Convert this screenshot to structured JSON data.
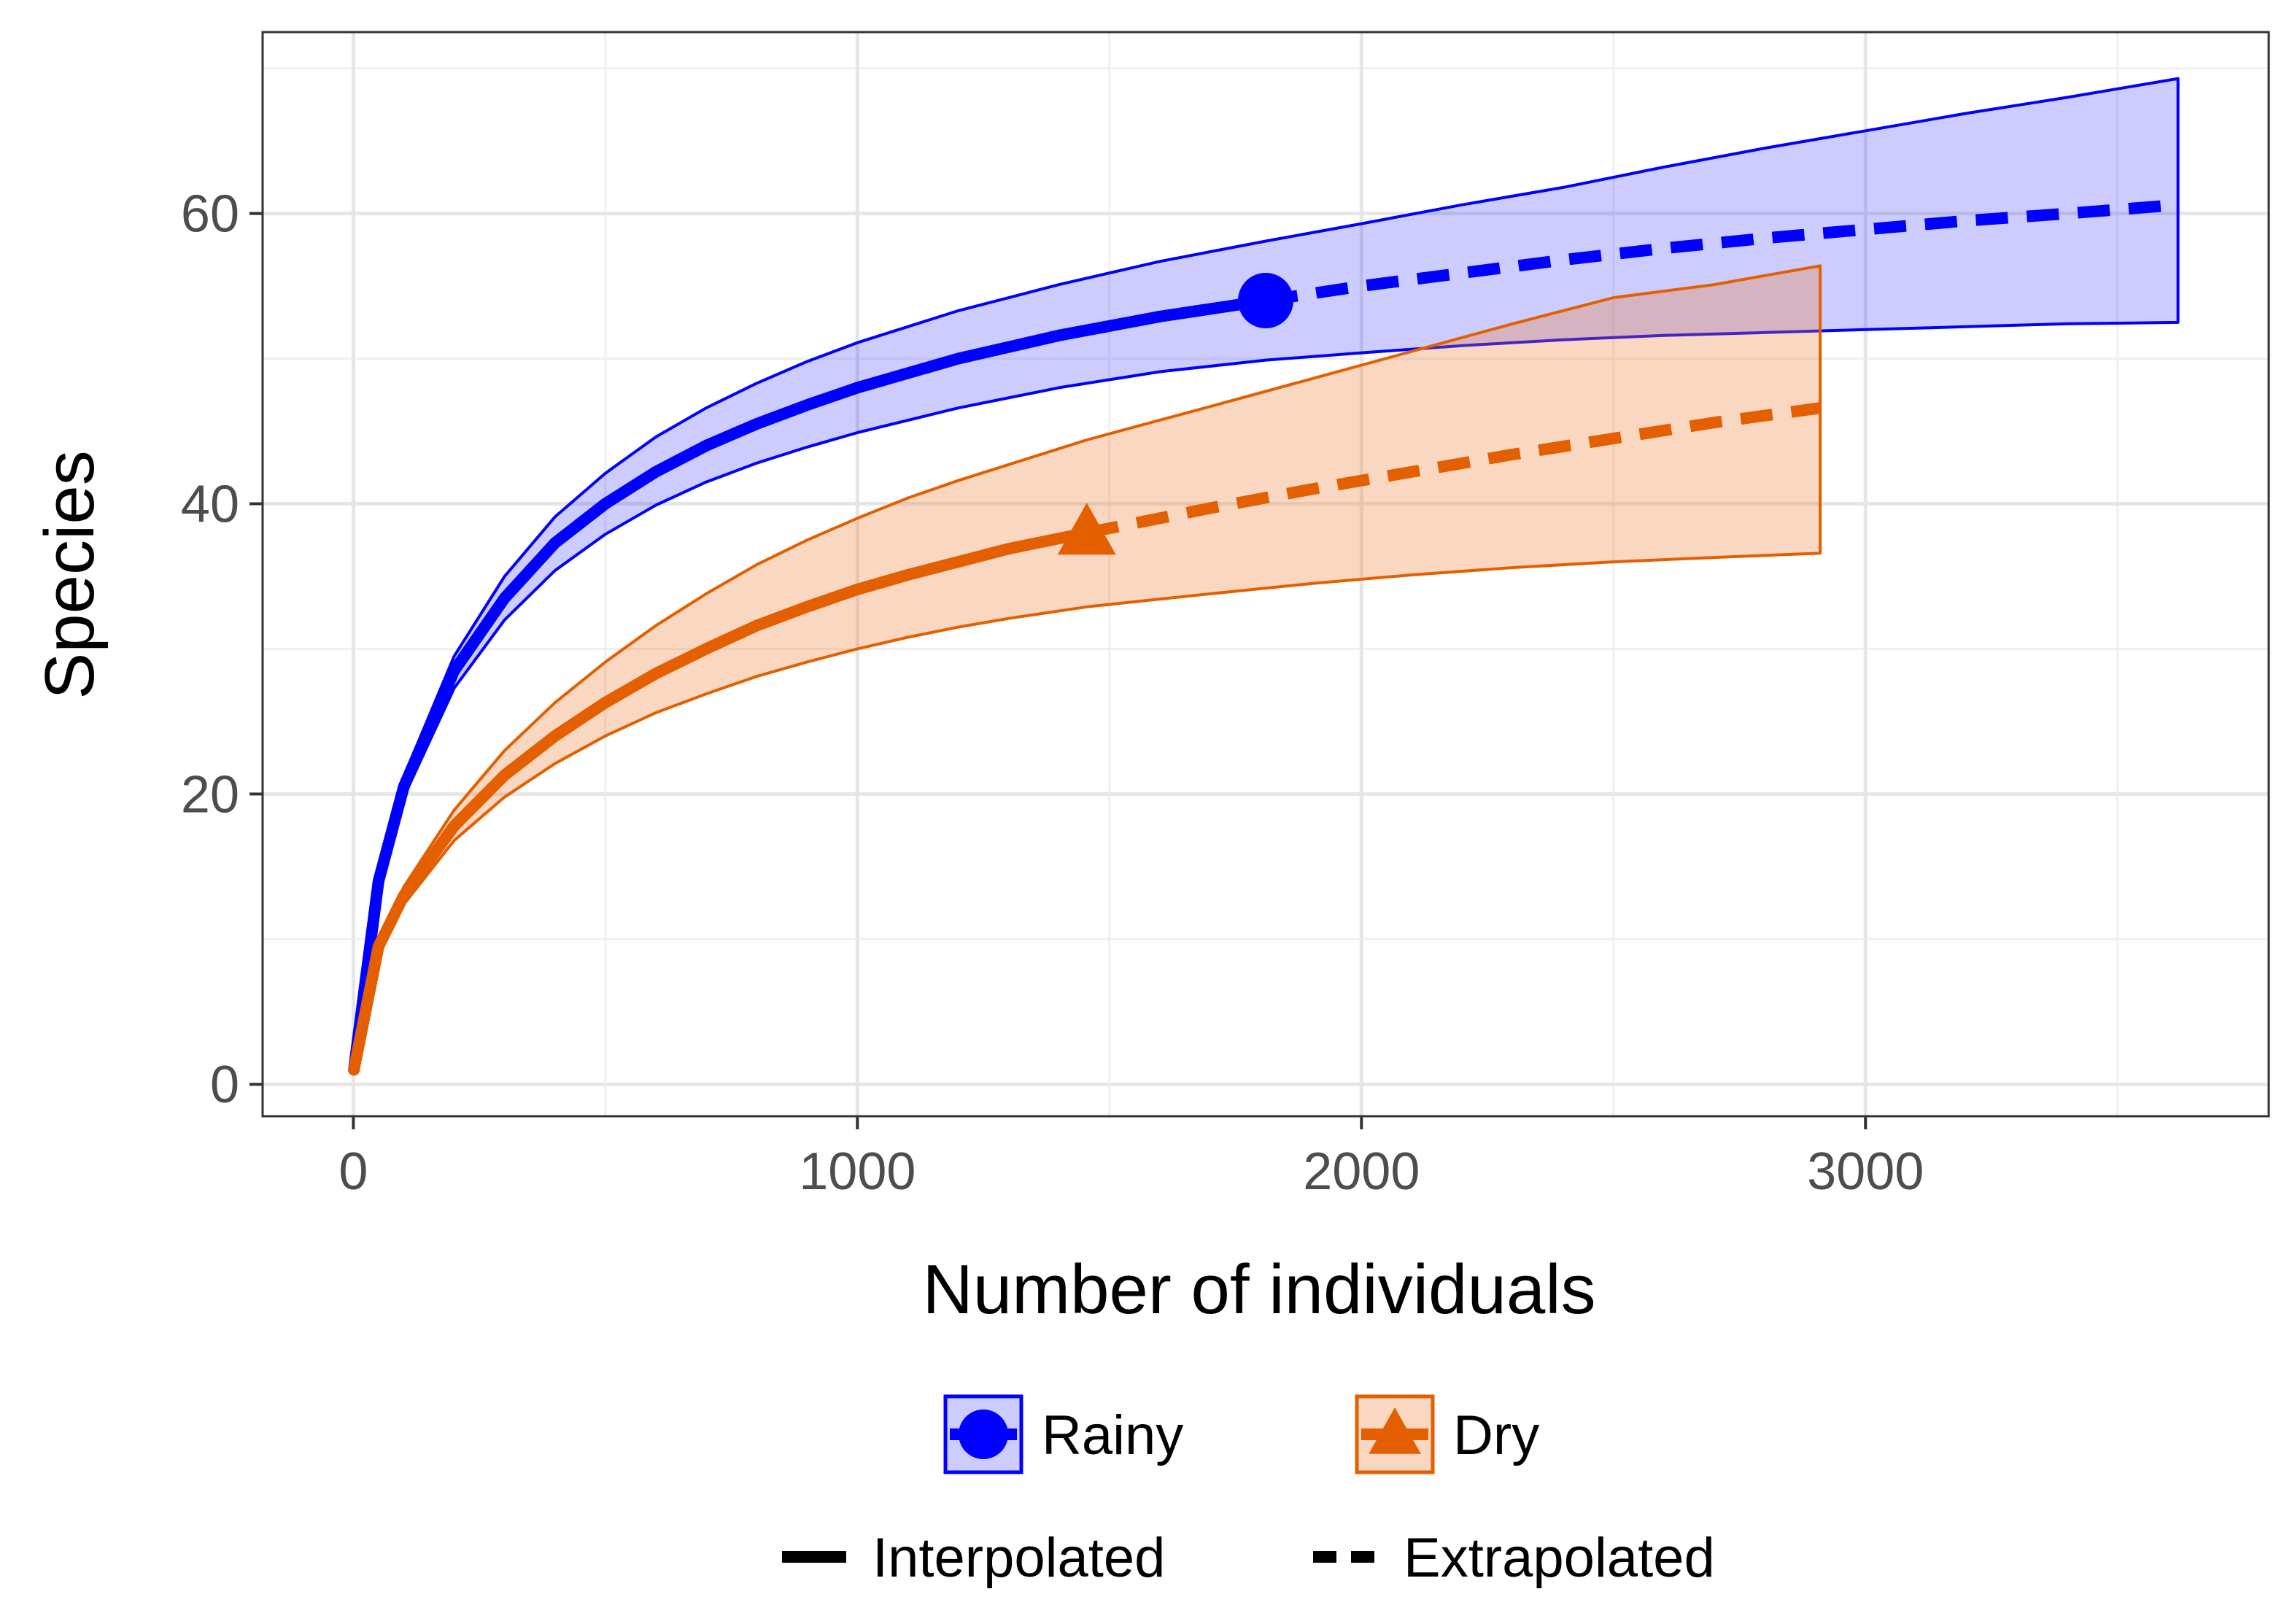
{
  "chart_data": {
    "type": "line",
    "title": "",
    "xlabel": "Number of individuals",
    "ylabel": "Species",
    "xlim": [
      -180,
      3800
    ],
    "ylim": [
      -2.2,
      72.5
    ],
    "xticks": [
      0,
      1000,
      2000,
      3000
    ],
    "xtick_labels": [
      "0",
      "1000",
      "2000",
      "3000"
    ],
    "x_minor_grid": [
      500,
      1500,
      2500,
      3500
    ],
    "yticks": [
      0,
      20,
      40,
      60
    ],
    "ytick_labels": [
      "0",
      "20",
      "40",
      "60"
    ],
    "y_minor_grid": [
      10,
      30,
      50,
      70
    ],
    "grid": true,
    "legend_position": "bottom",
    "series": [
      {
        "name": "Rainy",
        "color": "#0000ff",
        "fill": "rgba(0,0,255,0.2)",
        "marker": "circle",
        "observed": {
          "x": 1810,
          "y": 54
        },
        "interpolated": {
          "x": [
            1,
            50,
            100,
            200,
            300,
            400,
            500,
            600,
            700,
            800,
            900,
            1000,
            1200,
            1400,
            1600,
            1810
          ],
          "y": [
            1,
            14,
            20.5,
            28.5,
            33.5,
            37.3,
            40,
            42.2,
            44,
            45.5,
            46.8,
            48,
            50,
            51.6,
            52.9,
            54
          ]
        },
        "extrapolated": {
          "x": [
            1810,
            2000,
            2200,
            2400,
            2600,
            2800,
            3000,
            3200,
            3400,
            3620
          ],
          "y": [
            54,
            55,
            55.9,
            56.8,
            57.6,
            58.3,
            58.9,
            59.5,
            60,
            60.6
          ]
        },
        "ci_upper": {
          "x": [
            1,
            50,
            100,
            200,
            300,
            400,
            500,
            600,
            700,
            800,
            900,
            1000,
            1200,
            1400,
            1600,
            1810,
            2000,
            2200,
            2400,
            2600,
            2800,
            3000,
            3200,
            3400,
            3620
          ],
          "y": [
            1,
            14.5,
            21.2,
            29.5,
            35,
            39.1,
            42.1,
            44.6,
            46.6,
            48.3,
            49.8,
            51.1,
            53.3,
            55.1,
            56.7,
            58.1,
            59.3,
            60.6,
            61.8,
            63.2,
            64.5,
            65.7,
            66.9,
            68,
            69.3
          ]
        },
        "ci_lower": {
          "x": [
            1,
            50,
            100,
            200,
            300,
            400,
            500,
            600,
            700,
            800,
            900,
            1000,
            1200,
            1400,
            1600,
            1810,
            2000,
            2200,
            2400,
            2600,
            2800,
            3000,
            3200,
            3400,
            3620
          ],
          "y": [
            1,
            13.5,
            19.8,
            27.3,
            32,
            35.4,
            37.9,
            39.9,
            41.5,
            42.8,
            43.9,
            44.9,
            46.6,
            48,
            49.1,
            49.9,
            50.4,
            50.9,
            51.3,
            51.6,
            51.8,
            52,
            52.2,
            52.4,
            52.5
          ]
        }
      },
      {
        "name": "Dry",
        "color": "#e35f00",
        "fill": "rgba(236,124,48,0.3)",
        "marker": "triangle",
        "observed": {
          "x": 1455,
          "y": 38
        },
        "interpolated": {
          "x": [
            1,
            50,
            100,
            200,
            300,
            400,
            500,
            600,
            700,
            800,
            900,
            1000,
            1100,
            1200,
            1300,
            1455
          ],
          "y": [
            1,
            9.5,
            13,
            17.8,
            21.3,
            24,
            26.3,
            28.3,
            30,
            31.6,
            32.9,
            34.1,
            35.1,
            36,
            36.9,
            38
          ]
        },
        "extrapolated": {
          "x": [
            1455,
            1700,
            1900,
            2100,
            2300,
            2500,
            2700,
            2910
          ],
          "y": [
            38,
            39.7,
            41,
            42.2,
            43.4,
            44.5,
            45.6,
            46.6
          ]
        },
        "ci_upper": {
          "x": [
            1,
            50,
            100,
            200,
            300,
            400,
            500,
            600,
            700,
            800,
            900,
            1000,
            1100,
            1200,
            1300,
            1455,
            1700,
            1900,
            2100,
            2300,
            2500,
            2700,
            2910
          ],
          "y": [
            1,
            9.8,
            13.6,
            18.9,
            23,
            26.3,
            29.1,
            31.6,
            33.8,
            35.8,
            37.5,
            39,
            40.4,
            41.6,
            42.7,
            44.4,
            46.7,
            48.6,
            50.5,
            52.4,
            54.2,
            55.1,
            56.4
          ]
        },
        "ci_lower": {
          "x": [
            1,
            50,
            100,
            200,
            300,
            400,
            500,
            600,
            700,
            800,
            900,
            1000,
            1100,
            1200,
            1300,
            1455,
            1700,
            1900,
            2100,
            2300,
            2500,
            2700,
            2910
          ],
          "y": [
            1,
            9.2,
            12.4,
            16.8,
            19.8,
            22.1,
            24,
            25.6,
            26.9,
            28.1,
            29.1,
            30,
            30.8,
            31.5,
            32.1,
            32.9,
            33.8,
            34.5,
            35.1,
            35.6,
            36,
            36.3,
            36.6
          ]
        }
      }
    ],
    "legend": {
      "groups": [
        {
          "label": "Rainy",
          "color": "#0000ff",
          "fill": "rgba(0,0,255,0.2)",
          "marker": "circle"
        },
        {
          "label": "Dry",
          "color": "#e35f00",
          "fill": "rgba(236,124,48,0.3)",
          "marker": "triangle"
        }
      ],
      "linetypes": [
        {
          "label": "Interpolated",
          "style": "solid"
        },
        {
          "label": "Extrapolated",
          "style": "dashed"
        }
      ]
    }
  }
}
